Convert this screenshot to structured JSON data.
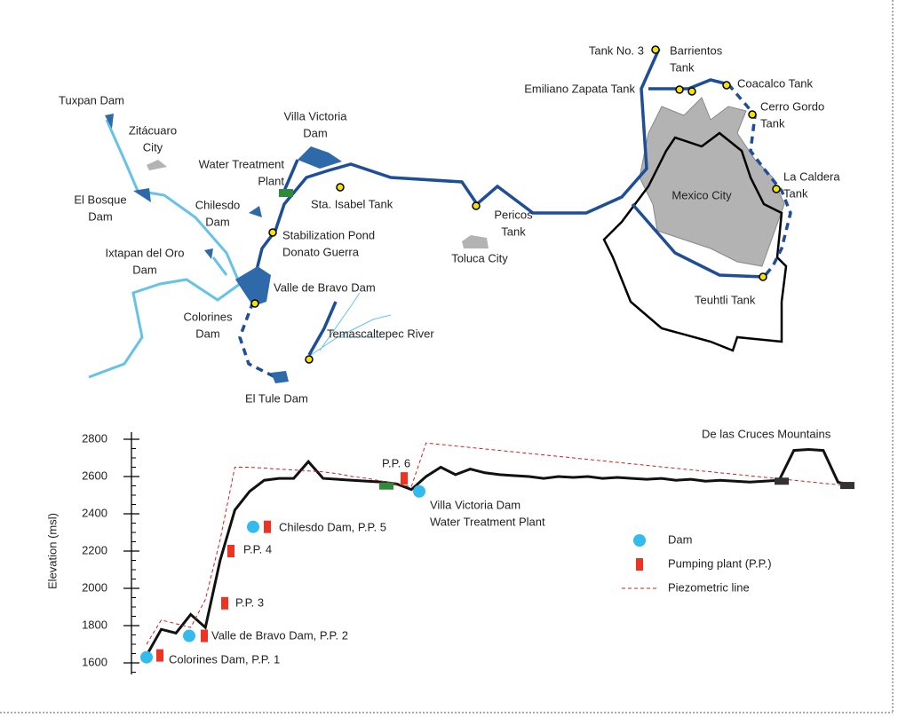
{
  "map": {
    "labels": [
      [
        "Tuxpan Dam"
      ],
      [
        "Zitácuaro",
        "City"
      ],
      [
        "Villa Victoria",
        "Dam"
      ],
      [
        "Water Treatment",
        "Plant"
      ],
      [
        "El Bosque",
        "Dam"
      ],
      [
        "Chilesdo",
        "Dam"
      ],
      [
        "Sta. Isabel Tank"
      ],
      [
        "Pericos",
        "Tank"
      ],
      [
        "Mexico City"
      ],
      [
        "La Caldera",
        "Tank"
      ],
      [
        "Ixtapan del Oro",
        "Dam"
      ],
      [
        "Stabilization Pond",
        "Donato Guerra"
      ],
      [
        "Toluca City"
      ],
      [
        "Colorines",
        "Dam"
      ],
      [
        "Valle de Bravo Dam"
      ],
      [
        "Temascaltepec River"
      ],
      [
        "Teuhtli Tank"
      ],
      [
        "El Tule Dam"
      ],
      [
        "Tank No. 3"
      ],
      [
        "Barrientos",
        "Tank"
      ],
      [
        "Emiliano Zapata Tank"
      ],
      [
        "Coacalco Tank"
      ],
      [
        "Cerro Gordo",
        "Tank"
      ]
    ]
  },
  "chart_data": {
    "type": "line",
    "ylabel": "Elevation (msl)",
    "ylim": [
      1600,
      2800
    ],
    "yticks": [
      1600,
      1800,
      2000,
      2200,
      2400,
      2600,
      2800
    ],
    "series": [
      {
        "color": "#111111",
        "values": [
          1640,
          1780,
          1760,
          1860,
          1790,
          2150,
          2420,
          2520,
          2580,
          2590,
          2590,
          2680,
          2590,
          2585,
          2580,
          2575,
          2570,
          2560,
          2530,
          2600,
          2650,
          2610,
          2640,
          2620,
          2610,
          2605,
          2600,
          2590,
          2600,
          2595,
          2600,
          2590,
          2595,
          2590,
          2585,
          2590,
          2580,
          2585,
          2575,
          2580,
          2575,
          2570,
          2575,
          2580,
          2740,
          2745,
          2740,
          2570,
          2550
        ]
      },
      {
        "name": "Piezometric line",
        "color": "#cc2222",
        "values": [
          1700,
          1830,
          1810,
          1790,
          1940,
          2260,
          2650,
          2650,
          2645,
          2640,
          2635,
          2630,
          2625,
          2615,
          2600,
          2590,
          2575,
          2560,
          2545,
          2780,
          2772,
          2764,
          2756,
          2748,
          2740,
          2732,
          2724,
          2716,
          2708,
          2700,
          2692,
          2684,
          2676,
          2668,
          2660,
          2652,
          2644,
          2636,
          2628,
          2620,
          2612,
          2604,
          2596,
          2588,
          2580,
          2572,
          2564,
          2556,
          2550
        ]
      }
    ],
    "markers": [
      {
        "name": "Dam",
        "color": "#33bbee",
        "values": [
          1630,
          1745,
          2330,
          2520
        ]
      },
      {
        "name": "Pumping plant (P.P.)",
        "color": "#ee3322",
        "values": [
          1640,
          1745,
          1920,
          2200,
          2330,
          2590
        ]
      }
    ],
    "annotations": [
      "De las Cruces Mountains",
      "P.P. 6",
      "Villa Victoria Dam",
      "Water Treatment Plant",
      "Chilesdo Dam, P.P. 5",
      "P.P. 4",
      "P.P. 3",
      "Valle de Bravo Dam, P.P. 2",
      "Colorines Dam, P.P. 1"
    ]
  }
}
